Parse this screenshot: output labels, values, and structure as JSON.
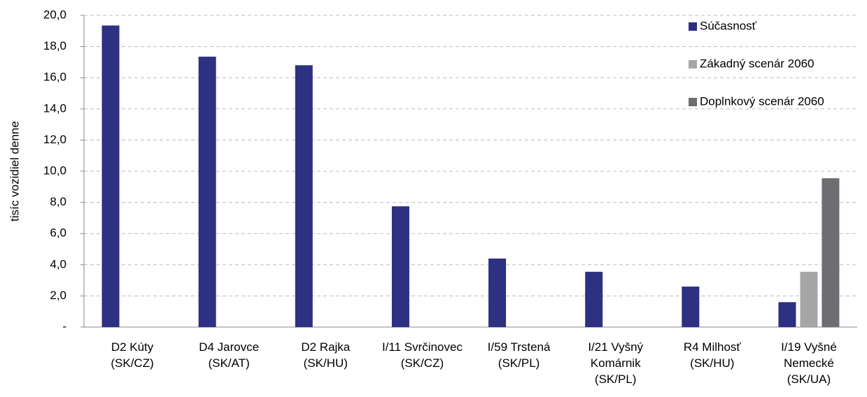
{
  "chart_data": {
    "type": "bar",
    "y_label": "tisíc vozidiel denne",
    "categories": [
      [
        "D2 Kúty",
        "(SK/CZ)"
      ],
      [
        "D4 Jarovce",
        "(SK/AT)"
      ],
      [
        "D2 Rajka",
        "(SK/HU)"
      ],
      [
        "I/11 Svrčinovec",
        "(SK/CZ)"
      ],
      [
        "I/59 Trstená",
        "(SK/PL)"
      ],
      [
        "I/21 Vyšný",
        "Komárnik",
        "(SK/PL)"
      ],
      [
        "R4 Milhosť",
        "(SK/HU)"
      ],
      [
        "I/19 Vyšné",
        "Nemecké",
        "(SK/UA)"
      ]
    ],
    "series": [
      {
        "name": "Súčasnosť",
        "color": "#2e3082",
        "values": [
          19.35,
          17.35,
          16.8,
          7.75,
          4.4,
          3.55,
          2.6,
          1.6
        ]
      },
      {
        "name": "Zákadný scenár 2060",
        "color": "#a6a6a6",
        "values": [
          null,
          null,
          null,
          null,
          null,
          null,
          null,
          3.55
        ]
      },
      {
        "name": "Doplnkový scenár 2060",
        "color": "#6d6e71",
        "values": [
          null,
          null,
          null,
          null,
          null,
          null,
          null,
          9.55
        ]
      }
    ],
    "ylim": [
      0,
      20
    ],
    "yticks": [
      {
        "value": 0,
        "label": "-"
      },
      {
        "value": 2,
        "label": "2,0"
      },
      {
        "value": 4,
        "label": "4,0"
      },
      {
        "value": 6,
        "label": "6,0"
      },
      {
        "value": 8,
        "label": "8,0"
      },
      {
        "value": 10,
        "label": "10,0"
      },
      {
        "value": 12,
        "label": "12,0"
      },
      {
        "value": 14,
        "label": "14,0"
      },
      {
        "value": 16,
        "label": "16,0"
      },
      {
        "value": 18,
        "label": "18,0"
      },
      {
        "value": 20,
        "label": "20,0"
      }
    ],
    "grid": true,
    "legend": "top-right"
  }
}
